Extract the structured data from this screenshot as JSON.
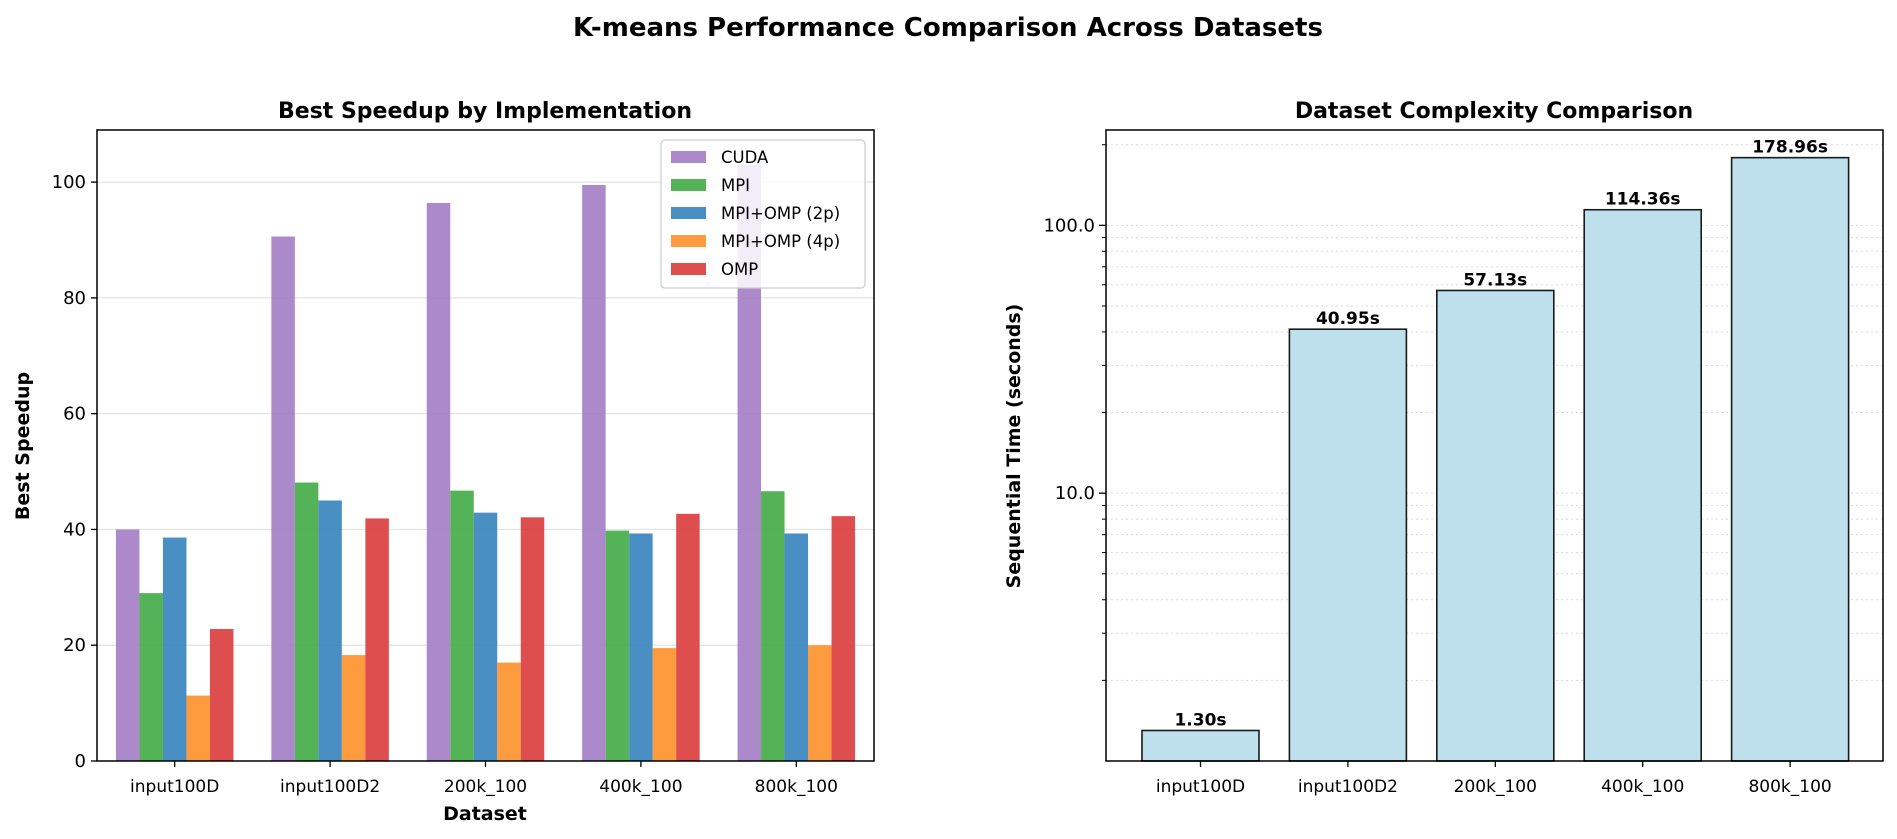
{
  "figure": {
    "title": "K-means Performance Comparison Across Datasets"
  },
  "chart_data": [
    {
      "type": "bar",
      "title": "Best Speedup by Implementation",
      "xlabel": "Dataset",
      "ylabel": "Best Speedup",
      "categories": [
        "input100D",
        "input100D2",
        "200k_100",
        "400k_100",
        "800k_100"
      ],
      "series": [
        {
          "name": "CUDA",
          "color": "#a57fc6",
          "values": [
            40.0,
            90.6,
            96.4,
            99.5,
            103.0
          ]
        },
        {
          "name": "MPI",
          "color": "#47ac49",
          "values": [
            29.0,
            48.1,
            46.7,
            39.8,
            46.6
          ]
        },
        {
          "name": "MPI+OMP (2p)",
          "color": "#3a86be",
          "values": [
            38.6,
            45.0,
            42.9,
            39.3,
            39.3
          ]
        },
        {
          "name": "MPI+OMP (4p)",
          "color": "#fe922f",
          "values": [
            11.3,
            18.3,
            17.0,
            19.5,
            20.0
          ]
        },
        {
          "name": "OMP",
          "color": "#dc3f40",
          "values": [
            22.8,
            41.9,
            42.1,
            42.7,
            42.3
          ]
        }
      ],
      "ylim": [
        0,
        109
      ],
      "yticks": [
        0,
        20,
        40,
        60,
        80,
        100
      ],
      "grid": "horizontal",
      "legend": "top-right"
    },
    {
      "type": "bar",
      "title": "Dataset Complexity Comparison",
      "xlabel": "",
      "ylabel": "Sequential Time (seconds)",
      "yscale": "log",
      "categories": [
        "input100D",
        "input100D2",
        "200k_100",
        "400k_100",
        "800k_100"
      ],
      "values": [
        1.3,
        40.95,
        57.13,
        114.36,
        178.96
      ],
      "data_labels": [
        "1.30s",
        "40.95s",
        "57.13s",
        "114.36s",
        "178.96s"
      ],
      "bar_color": "#bde0ec",
      "ylim": [
        1.0,
        227
      ],
      "yticks": [
        10.0,
        100.0
      ],
      "ytick_labels": [
        "10.0",
        "100.0"
      ],
      "grid": "horizontal dotted"
    }
  ]
}
